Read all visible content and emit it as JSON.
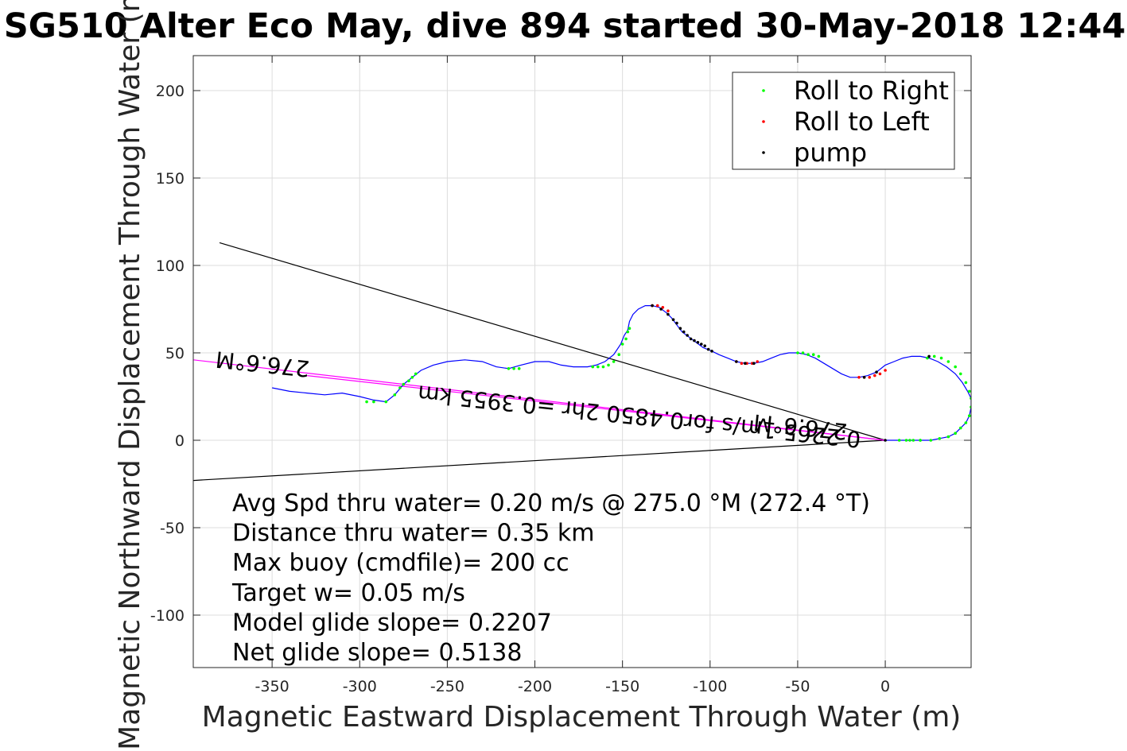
{
  "title": "SG510 Alter Eco May, dive 894 started 30-May-2018 12:44",
  "chart_data": {
    "type": "scatter",
    "xlabel": "Magnetic Eastward Displacement Through Water (m)",
    "ylabel": "Magnetic Northward Displacement Through Water (m)",
    "xlim": [
      -395,
      49
    ],
    "ylim": [
      -130,
      220
    ],
    "xticks": [
      -350,
      -300,
      -250,
      -200,
      -150,
      -100,
      -50,
      0
    ],
    "yticks": [
      -100,
      -50,
      0,
      50,
      100,
      150,
      200
    ],
    "grid": true,
    "legend_position": "top-right",
    "legend": [
      {
        "label": "Roll to Right",
        "color": "#00ff00"
      },
      {
        "label": "Roll to Left",
        "color": "#ff0000"
      },
      {
        "label": "pump",
        "color": "#000000"
      }
    ],
    "track": {
      "color": "#0000ff",
      "x": [
        -350,
        -340,
        -330,
        -320,
        -310,
        -300,
        -292,
        -285,
        -280,
        -275,
        -270,
        -265,
        -258,
        -250,
        -240,
        -230,
        -222,
        -215,
        -208,
        -200,
        -192,
        -185,
        -178,
        -170,
        -165,
        -160,
        -155,
        -151,
        -149,
        -147,
        -146,
        -144,
        -141,
        -137,
        -133,
        -129,
        -125,
        -122,
        -119,
        -116,
        -112,
        -108,
        -104,
        -99,
        -95,
        -90,
        -85,
        -80,
        -75,
        -70,
        -65,
        -60,
        -55,
        -50,
        -45,
        -40,
        -35,
        -30,
        -25,
        -20,
        -15,
        -10,
        -5,
        0,
        5,
        10,
        15,
        20,
        25,
        30,
        35,
        40,
        44,
        47,
        49,
        49,
        48,
        46,
        43,
        40,
        36,
        31,
        26,
        20,
        14,
        8,
        3,
        0
      ],
      "y": [
        30,
        28,
        27,
        26,
        27,
        25,
        23,
        22,
        26,
        32,
        36,
        40,
        43,
        45,
        46,
        45,
        42,
        41,
        43,
        45,
        45,
        43,
        42,
        42,
        43,
        45,
        49,
        55,
        60,
        63,
        68,
        72,
        75,
        77,
        77,
        76,
        73,
        70,
        66,
        62,
        59,
        56,
        53,
        51,
        49,
        47,
        45,
        44,
        44,
        45,
        47,
        49,
        50,
        50,
        49,
        47,
        44,
        41,
        38,
        36,
        36,
        37,
        39,
        43,
        45,
        47,
        48,
        48,
        47,
        45,
        42,
        38,
        33,
        28,
        24,
        19,
        14,
        10,
        7,
        4,
        2,
        1,
        0,
        0,
        0,
        0,
        0,
        0
      ]
    },
    "roll_right_x": [
      -296,
      -292,
      -285,
      -280,
      -277,
      -275,
      -272,
      -270,
      -268,
      -215,
      -212,
      -209,
      -167,
      -164,
      -161,
      -158,
      -155,
      -152,
      -150,
      -148,
      -147,
      -146,
      -50,
      -47,
      -44,
      -41,
      -38,
      8,
      12,
      16,
      20,
      24,
      28,
      32,
      36,
      40,
      43,
      46,
      48,
      49,
      49,
      48,
      46,
      43,
      40,
      36,
      31,
      26,
      20,
      14
    ],
    "roll_right_y": [
      22,
      22,
      22,
      26,
      30,
      32,
      34,
      36,
      38,
      41,
      41,
      41,
      42,
      42,
      42,
      43,
      45,
      49,
      55,
      58,
      62,
      64,
      50,
      50,
      49,
      49,
      48,
      0,
      0,
      0,
      0,
      47,
      48,
      47,
      45,
      42,
      38,
      33,
      28,
      24,
      19,
      14,
      10,
      7,
      4,
      2,
      1,
      0,
      0,
      0
    ],
    "roll_left_x": [
      -133,
      -130,
      -127,
      -124,
      -85,
      -82,
      -79,
      -76,
      -73,
      -15,
      -12,
      -9,
      -6,
      -3,
      0
    ],
    "roll_left_y": [
      77,
      77,
      76,
      74,
      45,
      44,
      44,
      44,
      45,
      36,
      36,
      36,
      37,
      38,
      40
    ],
    "pump_x": [
      -133,
      -128,
      -124,
      -121,
      -119,
      -117,
      -115,
      -113,
      -111,
      -109,
      -107,
      -105,
      -103,
      -101,
      -99,
      -85,
      -80,
      -75,
      -12,
      -5,
      0,
      25
    ],
    "pump_y": [
      77,
      75,
      72,
      69,
      67,
      64,
      62,
      60,
      58,
      57,
      56,
      55,
      54,
      52,
      51,
      45,
      44,
      44,
      36,
      39,
      0,
      48
    ],
    "reference_lines": [
      {
        "color": "#000000",
        "x": [
          -380,
          0
        ],
        "y": [
          113,
          0
        ]
      },
      {
        "color": "#000000",
        "x": [
          -395,
          0
        ],
        "y": [
          -23,
          0
        ]
      },
      {
        "color": "#ff00ff",
        "x": [
          -395,
          0
        ],
        "y": [
          46,
          0
        ]
      },
      {
        "color": "#ff00ff",
        "x": [
          -330,
          0
        ],
        "y": [
          37,
          0
        ]
      }
    ],
    "heading_labels": [
      {
        "text": "276.6°M",
        "x": -355,
        "y": 48,
        "rotate_deg": 186
      },
      {
        "text": "0.2265 1m/s for0.4850 2hr =0.3955 km",
        "x": -140,
        "y": 18,
        "rotate_deg": 186
      },
      {
        "text": "276.6°M",
        "x": -48,
        "y": 12,
        "rotate_deg": 186
      }
    ],
    "annotations": [
      "Avg Spd thru water=  0.20 m/s @ 275.0 °M (272.4 °T)",
      "Distance thru water=  0.35 km",
      "Max buoy (cmdfile)= 200 cc",
      "Target w= 0.05 m/s",
      "Model glide slope= 0.2207",
      "Net glide slope= 0.5138"
    ]
  }
}
